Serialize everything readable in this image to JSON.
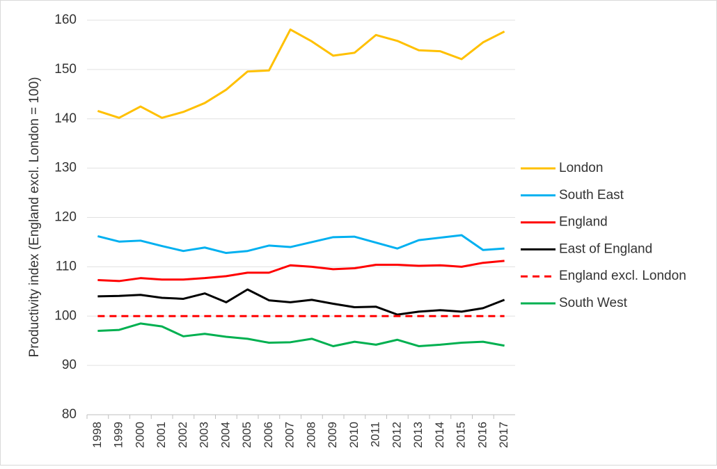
{
  "chart_data": {
    "type": "line",
    "ylabel": "Productivity index (England excl. London = 100)",
    "categories": [
      "1998",
      "1999",
      "2000",
      "2001",
      "2002",
      "2003",
      "2004",
      "2005",
      "2006",
      "2007",
      "2008",
      "2009",
      "2010",
      "2011",
      "2012",
      "2013",
      "2014",
      "2015",
      "2016",
      "2017"
    ],
    "series": [
      {
        "name": "London",
        "color": "#ffc000",
        "values": [
          141.6,
          140.2,
          142.5,
          140.2,
          141.4,
          143.2,
          145.9,
          149.6,
          149.8,
          158.1,
          155.7,
          152.8,
          153.4,
          157.0,
          155.8,
          153.9,
          153.7,
          152.1,
          155.5,
          157.7
        ]
      },
      {
        "name": "South East",
        "color": "#00b0f0",
        "values": [
          116.2,
          115.1,
          115.3,
          114.2,
          113.2,
          113.9,
          112.8,
          113.2,
          114.3,
          114.0,
          115.0,
          116.0,
          116.1,
          114.9,
          113.7,
          115.4,
          115.9,
          116.4,
          113.4,
          113.7
        ]
      },
      {
        "name": "England",
        "color": "#ff0000",
        "values": [
          107.3,
          107.1,
          107.7,
          107.4,
          107.4,
          107.7,
          108.1,
          108.8,
          108.8,
          110.3,
          110.0,
          109.5,
          109.7,
          110.4,
          110.4,
          110.2,
          110.3,
          110.0,
          110.8,
          111.2
        ]
      },
      {
        "name": "East of England",
        "color": "#000000",
        "values": [
          104.0,
          104.1,
          104.3,
          103.7,
          103.5,
          104.6,
          102.8,
          105.4,
          103.2,
          102.8,
          103.3,
          102.5,
          101.8,
          101.9,
          100.3,
          100.9,
          101.2,
          100.9,
          101.6,
          103.3
        ]
      },
      {
        "name": "England excl. London",
        "color": "#ff0000",
        "style": "dashed",
        "values": [
          100,
          100,
          100,
          100,
          100,
          100,
          100,
          100,
          100,
          100,
          100,
          100,
          100,
          100,
          100,
          100,
          100,
          100,
          100,
          100
        ]
      },
      {
        "name": "South West",
        "color": "#00b050",
        "values": [
          97.0,
          97.2,
          98.5,
          97.9,
          95.9,
          96.4,
          95.8,
          95.4,
          94.6,
          94.7,
          95.4,
          93.9,
          94.8,
          94.2,
          95.2,
          93.9,
          94.2,
          94.6,
          94.8,
          94.0
        ]
      }
    ],
    "ylim": [
      80,
      160
    ],
    "yticks": [
      80,
      90,
      100,
      110,
      120,
      130,
      140,
      150,
      160
    ],
    "grid": true,
    "legend": "right"
  }
}
